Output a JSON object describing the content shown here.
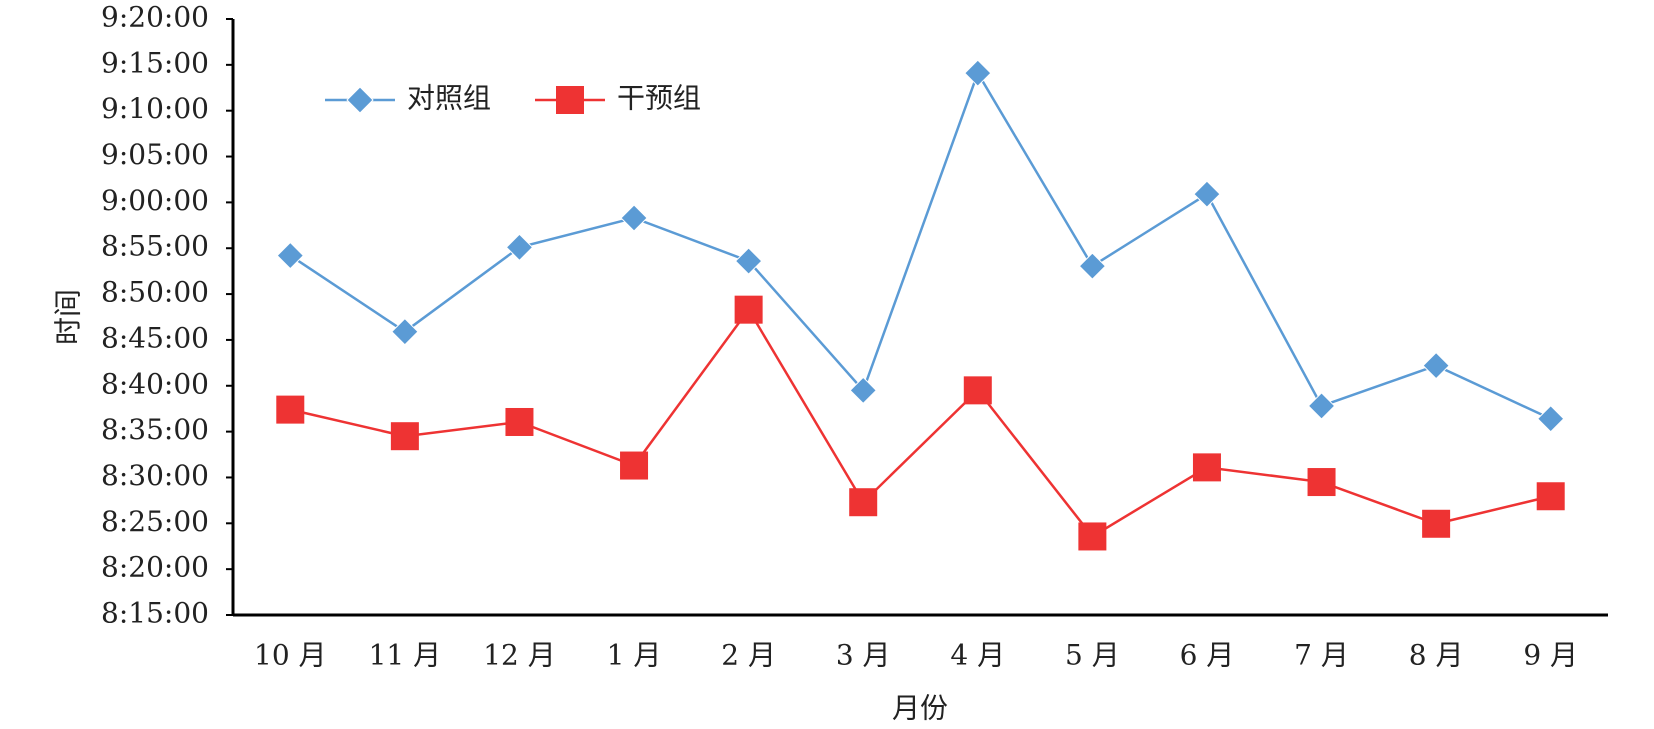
{
  "chart_data": {
    "type": "line",
    "x_label": "月份",
    "y_label": "时间",
    "categories": [
      "10 月",
      "11 月",
      "12 月",
      "1 月",
      "2 月",
      "3 月",
      "4 月",
      "5 月",
      "6 月",
      "7 月",
      "8 月",
      "9 月"
    ],
    "series": [
      {
        "name": "对照组",
        "color": "#5b9bd5",
        "marker": "diamond",
        "values": [
          32052,
          31554,
          32106,
          32298,
          32016,
          31170,
          33246,
          31983,
          32454,
          31068,
          31332,
          30984
        ]
      },
      {
        "name": "干预组",
        "color": "#ee3333",
        "marker": "square",
        "values": [
          31044,
          30870,
          30963,
          30678,
          31698,
          30438,
          31170,
          30214,
          30666,
          30570,
          30297,
          30477
        ]
      }
    ],
    "ylim": [
      29700,
      33600
    ],
    "yticks": [
      {
        "value": 29700,
        "label": "8:15:00"
      },
      {
        "value": 30000,
        "label": "8:20:00"
      },
      {
        "value": 30300,
        "label": "8:25:00"
      },
      {
        "value": 30600,
        "label": "8:30:00"
      },
      {
        "value": 30900,
        "label": "8:35:00"
      },
      {
        "value": 31200,
        "label": "8:40:00"
      },
      {
        "value": 31500,
        "label": "8:45:00"
      },
      {
        "value": 31800,
        "label": "8:50:00"
      },
      {
        "value": 32100,
        "label": "8:55:00"
      },
      {
        "value": 32400,
        "label": "9:00:00"
      },
      {
        "value": 32700,
        "label": "9:05:00"
      },
      {
        "value": 33000,
        "label": "9:10:00"
      },
      {
        "value": 33300,
        "label": "9:15:00"
      },
      {
        "value": 33600,
        "label": "9:20:00"
      }
    ],
    "legend": "top-left"
  }
}
